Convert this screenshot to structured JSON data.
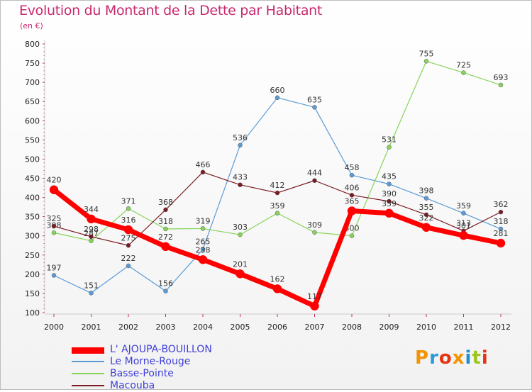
{
  "chart_data": {
    "type": "line",
    "title": "Evolution du Montant de la Dette par Habitant",
    "subtitle": "(en €)",
    "x": [
      "2000",
      "2001",
      "2002",
      "2003",
      "2004",
      "2005",
      "2006",
      "2007",
      "2008",
      "2009",
      "2010",
      "2011",
      "2012"
    ],
    "yticks": [
      100,
      150,
      200,
      250,
      300,
      350,
      400,
      450,
      500,
      550,
      600,
      650,
      700,
      750,
      800
    ],
    "ylim": [
      100,
      800
    ],
    "grid": false,
    "legend_position": "bottom-left",
    "series": [
      {
        "name": "Le Morne-Rouge",
        "color": "#5b9bd5",
        "width": 1.2,
        "marker": 3,
        "values": [
          197,
          151,
          222,
          156,
          265,
          536,
          660,
          635,
          458,
          435,
          398,
          359,
          318
        ]
      },
      {
        "name": "Basse-Pointe",
        "color": "#86d45a",
        "width": 1.2,
        "marker": 3,
        "values": [
          308,
          287,
          371,
          318,
          319,
          303,
          359,
          309,
          300,
          531,
          755,
          725,
          693
        ]
      },
      {
        "name": "Macouba",
        "color": "#7a1b22",
        "width": 1.2,
        "marker": 3,
        "values": [
          325,
          298,
          275,
          368,
          466,
          433,
          412,
          444,
          406,
          390,
          355,
          313,
          362
        ]
      },
      {
        "name": "L' AJOUPA-BOUILLON",
        "color": "#ff0000",
        "width": 7,
        "marker": 6,
        "values": [
          420,
          344,
          316,
          272,
          238,
          201,
          162,
          117,
          365,
          359,
          322,
          301,
          281
        ]
      }
    ]
  },
  "legend_order": [
    3,
    0,
    1,
    2
  ],
  "logo": {
    "text": "Proxiti",
    "colors": [
      "#f29400",
      "#2e9bd6",
      "#e63312",
      "#f29400",
      "#1d8fcf",
      "#9dc41a",
      "#e63312"
    ]
  }
}
